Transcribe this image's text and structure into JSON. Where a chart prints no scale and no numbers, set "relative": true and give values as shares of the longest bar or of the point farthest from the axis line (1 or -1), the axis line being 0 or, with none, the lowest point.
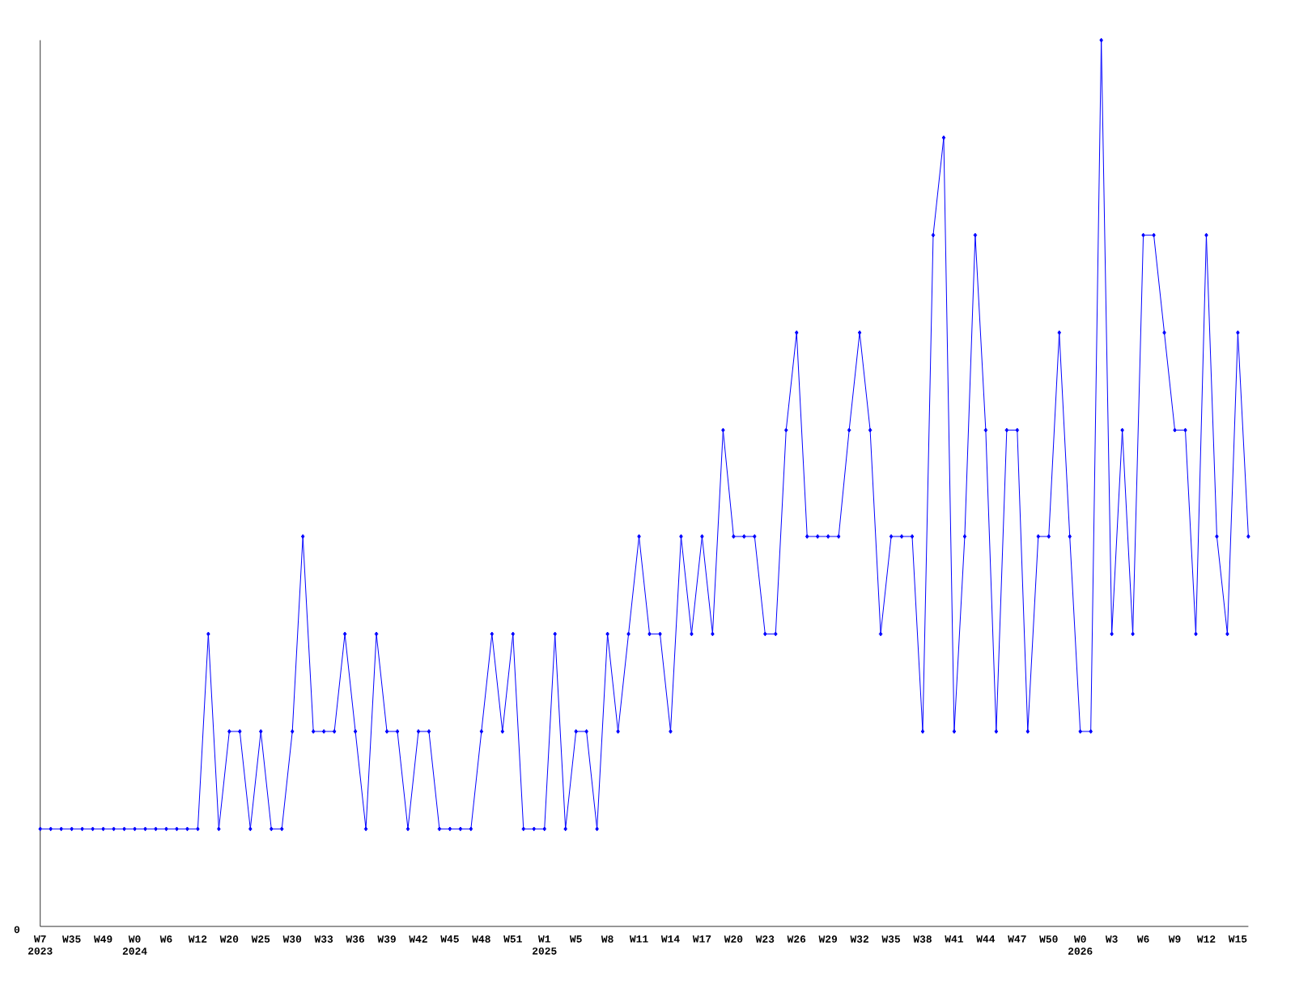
{
  "chart_data": {
    "type": "line",
    "relative": true,
    "color": "#0000ff",
    "marker": "diamond",
    "grid": false,
    "annotations": [
      "0"
    ],
    "categories": [
      "W7 2023",
      null,
      null,
      "W35",
      null,
      null,
      "W49",
      null,
      null,
      "W0 2024",
      null,
      null,
      "W6",
      null,
      null,
      "W12",
      null,
      null,
      "W20",
      null,
      null,
      "W25",
      null,
      null,
      "W30",
      null,
      null,
      "W33",
      null,
      null,
      "W36",
      null,
      null,
      "W39",
      null,
      null,
      "W42",
      null,
      null,
      "W45",
      null,
      null,
      "W48",
      null,
      null,
      "W51",
      null,
      null,
      "W1 2025",
      null,
      null,
      "W5",
      null,
      null,
      "W8",
      null,
      null,
      "W11",
      null,
      null,
      "W14",
      null,
      null,
      "W17",
      null,
      null,
      "W20",
      null,
      null,
      "W23",
      null,
      null,
      "W26",
      null,
      null,
      "W29",
      null,
      null,
      "W32",
      null,
      null,
      "W35",
      null,
      null,
      "W38",
      null,
      null,
      "W41",
      null,
      null,
      "W44",
      null,
      null,
      "W47",
      null,
      null,
      "W50",
      null,
      null,
      "W0 2026",
      null,
      null,
      "W3",
      null,
      null,
      "W6",
      null,
      null,
      "W9",
      null,
      null,
      "W12",
      null,
      null,
      "W15",
      null
    ],
    "values": [
      0.11,
      0.11,
      0.11,
      0.11,
      0.11,
      0.11,
      0.11,
      0.11,
      0.11,
      0.11,
      0.11,
      0.11,
      0.11,
      0.11,
      0.11,
      0.11,
      0.33,
      0.11,
      0.22,
      0.22,
      0.11,
      0.22,
      0.11,
      0.11,
      0.22,
      0.44,
      0.22,
      0.22,
      0.22,
      0.33,
      0.22,
      0.11,
      0.33,
      0.22,
      0.22,
      0.11,
      0.22,
      0.22,
      0.11,
      0.11,
      0.11,
      0.11,
      0.22,
      0.33,
      0.22,
      0.33,
      0.11,
      0.11,
      0.11,
      0.33,
      0.11,
      0.22,
      0.22,
      0.11,
      0.33,
      0.22,
      0.33,
      0.44,
      0.33,
      0.33,
      0.22,
      0.44,
      0.33,
      0.44,
      0.33,
      0.56,
      0.44,
      0.44,
      0.44,
      0.33,
      0.33,
      0.56,
      0.67,
      0.44,
      0.44,
      0.44,
      0.44,
      0.56,
      0.67,
      0.56,
      0.33,
      0.44,
      0.44,
      0.44,
      0.22,
      0.78,
      0.89,
      0.22,
      0.44,
      0.78,
      0.56,
      0.22,
      0.56,
      0.56,
      0.22,
      0.44,
      0.44,
      0.67,
      0.44,
      0.22,
      0.22,
      1,
      0.33,
      0.56,
      0.33,
      0.78,
      0.78,
      0.67,
      0.56,
      0.56,
      0.33,
      0.78,
      0.44,
      0.33,
      0.67,
      0.44
    ]
  }
}
